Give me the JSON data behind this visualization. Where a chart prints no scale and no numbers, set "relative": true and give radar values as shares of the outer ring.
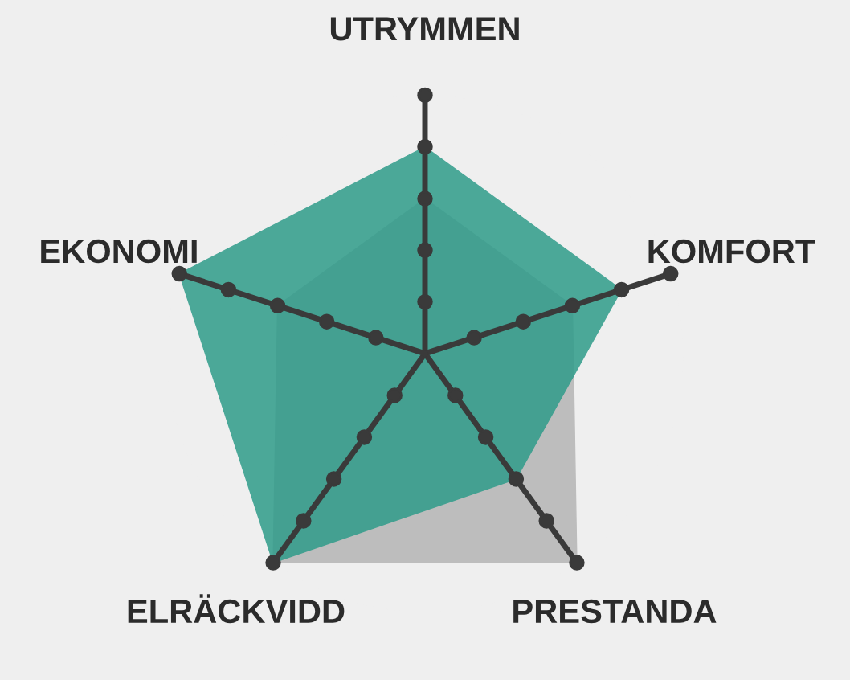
{
  "chart_data": {
    "type": "radar",
    "relative": true,
    "grid": true,
    "legend": false,
    "marker": "none",
    "categories": [
      "UTRYMMEN",
      "KOMFORT",
      "PRESTANDA",
      "ELRÄCKVIDD",
      "EKONOMI"
    ],
    "series": [
      {
        "color": "#bdbdbd",
        "values": [
          0.6,
          0.6,
          1.0,
          1.0,
          0.6
        ]
      },
      {
        "color": "#2f9c8a",
        "values": [
          0.8,
          0.8,
          0.6,
          1.0,
          1.0
        ]
      }
    ]
  }
}
